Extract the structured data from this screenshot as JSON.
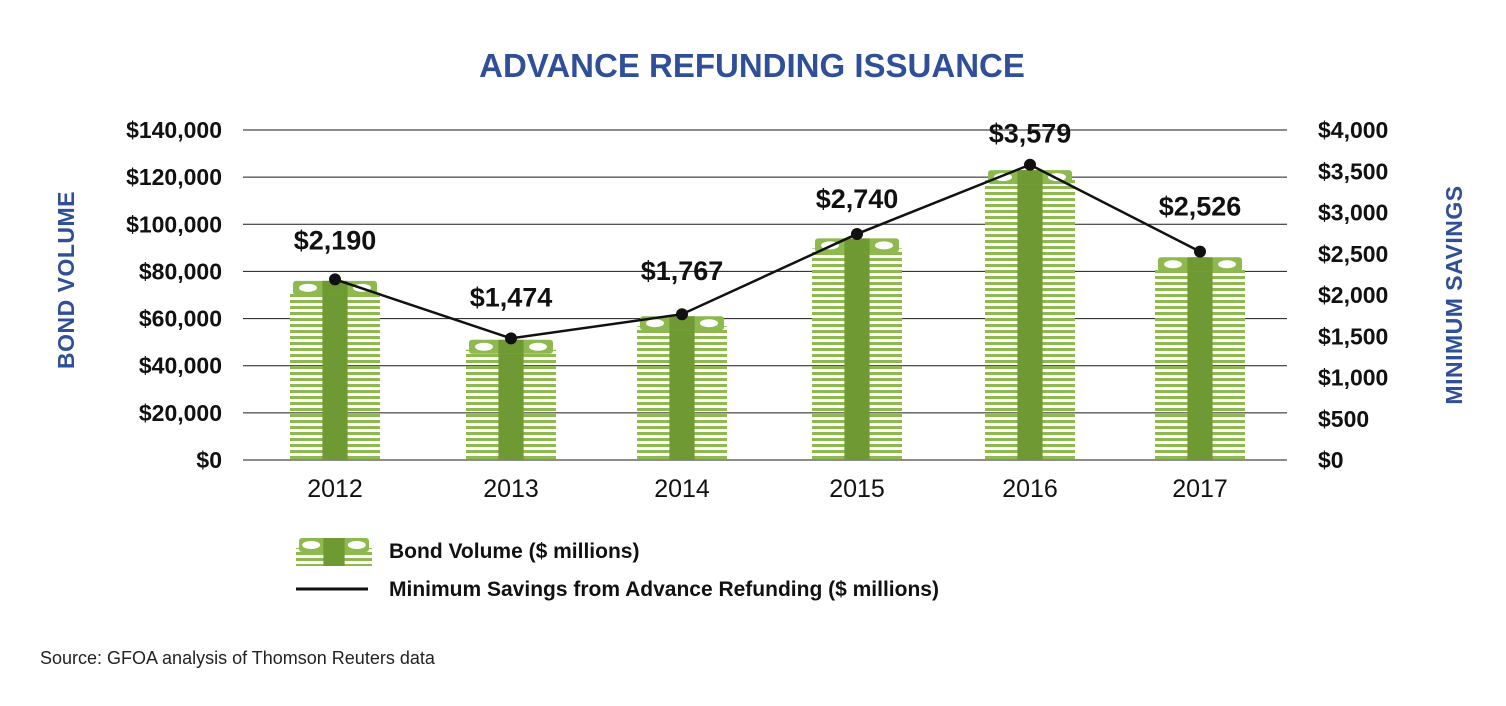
{
  "chart_data": {
    "type": "bar",
    "title": "ADVANCE REFUNDING ISSUANCE",
    "categories": [
      "2012",
      "2013",
      "2014",
      "2015",
      "2016",
      "2017"
    ],
    "series": [
      {
        "name": "Bond Volume ($ millions)",
        "type": "bar",
        "axis": "left",
        "values": [
          76000,
          51000,
          61000,
          94000,
          123000,
          86000
        ]
      },
      {
        "name": "Minimum Savings from Advance Refunding ($ millions)",
        "type": "line",
        "axis": "right",
        "values": [
          2190,
          1474,
          1767,
          2740,
          3579,
          2526
        ],
        "labels": [
          "$2,190",
          "$1,474",
          "$1,767",
          "$2,740",
          "$3,579",
          "$2,526"
        ]
      }
    ],
    "ylabel": "BOND VOLUME",
    "ylabel_right": "MINIMUM SAVINGS",
    "ylim": [
      0,
      140000
    ],
    "ylim_right": [
      0,
      4000
    ],
    "yticks": [
      "$0",
      "$20,000",
      "$40,000",
      "$60,000",
      "$80,000",
      "$100,000",
      "$120,000",
      "$140,000"
    ],
    "yticks_right": [
      "$0",
      "$500",
      "$1,000",
      "$1,500",
      "$2,000",
      "$2,500",
      "$3,000",
      "$3,500",
      "$4,000"
    ],
    "grid": true,
    "legend_position": "bottom-left",
    "colors": {
      "bar": "#8db94e",
      "bar_dark": "#6f9a33",
      "line": "#111111",
      "title": "#2f4f98"
    }
  },
  "source": "Source: GFOA analysis of Thomson Reuters data"
}
